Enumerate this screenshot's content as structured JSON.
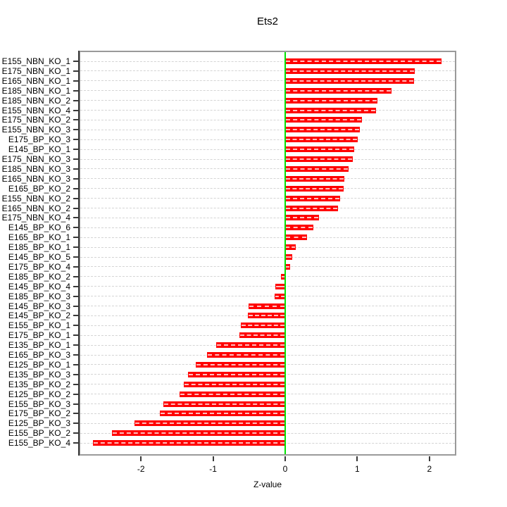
{
  "title": "Ets2",
  "chart_data": {
    "type": "bar",
    "orientation": "horizontal",
    "title": "Ets2",
    "xlabel": "Z-value",
    "ylabel": "",
    "xlim": [
      -2.86,
      2.37
    ],
    "xticks": [
      -2,
      -1,
      0,
      1,
      2
    ],
    "grid": "dashed horizontal per category",
    "legend": "none",
    "bar_color": "#ff0000",
    "zero_line_color": "#00e300",
    "gridline_color": "#d4d4d4",
    "box_color": "#9a9a9a",
    "categories": [
      "E155_NBN_KO_1",
      "E175_NBN_KO_1",
      "E165_NBN_KO_1",
      "E185_NBN_KO_1",
      "E185_NBN_KO_2",
      "E155_NBN_KO_4",
      "E175_NBN_KO_2",
      "E155_NBN_KO_3",
      "E175_BP_KO_3",
      "E145_BP_KO_1",
      "E175_NBN_KO_3",
      "E185_NBN_KO_3",
      "E165_NBN_KO_3",
      "E165_BP_KO_2",
      "E155_NBN_KO_2",
      "E165_NBN_KO_2",
      "E175_NBN_KO_4",
      "E145_BP_KO_6",
      "E165_BP_KO_1",
      "E185_BP_KO_1",
      "E145_BP_KO_5",
      "E175_BP_KO_4",
      "E185_BP_KO_2",
      "E145_BP_KO_4",
      "E185_BP_KO_3",
      "E145_BP_KO_3",
      "E145_BP_KO_2",
      "E155_BP_KO_1",
      "E175_BP_KO_1",
      "E135_BP_KO_1",
      "E165_BP_KO_3",
      "E125_BP_KO_1",
      "E135_BP_KO_3",
      "E135_BP_KO_2",
      "E125_BP_KO_2",
      "E155_BP_KO_3",
      "E175_BP_KO_2",
      "E125_BP_KO_3",
      "E155_BP_KO_2",
      "E155_BP_KO_4"
    ],
    "values": [
      2.17,
      1.8,
      1.79,
      1.47,
      1.28,
      1.26,
      1.06,
      1.04,
      1.01,
      0.96,
      0.94,
      0.88,
      0.82,
      0.81,
      0.76,
      0.73,
      0.47,
      0.39,
      0.3,
      0.15,
      0.1,
      0.07,
      -0.06,
      -0.14,
      -0.15,
      -0.51,
      -0.52,
      -0.62,
      -0.63,
      -0.96,
      -1.08,
      -1.24,
      -1.35,
      -1.41,
      -1.46,
      -1.69,
      -1.74,
      -2.09,
      -2.4,
      -2.67
    ]
  }
}
